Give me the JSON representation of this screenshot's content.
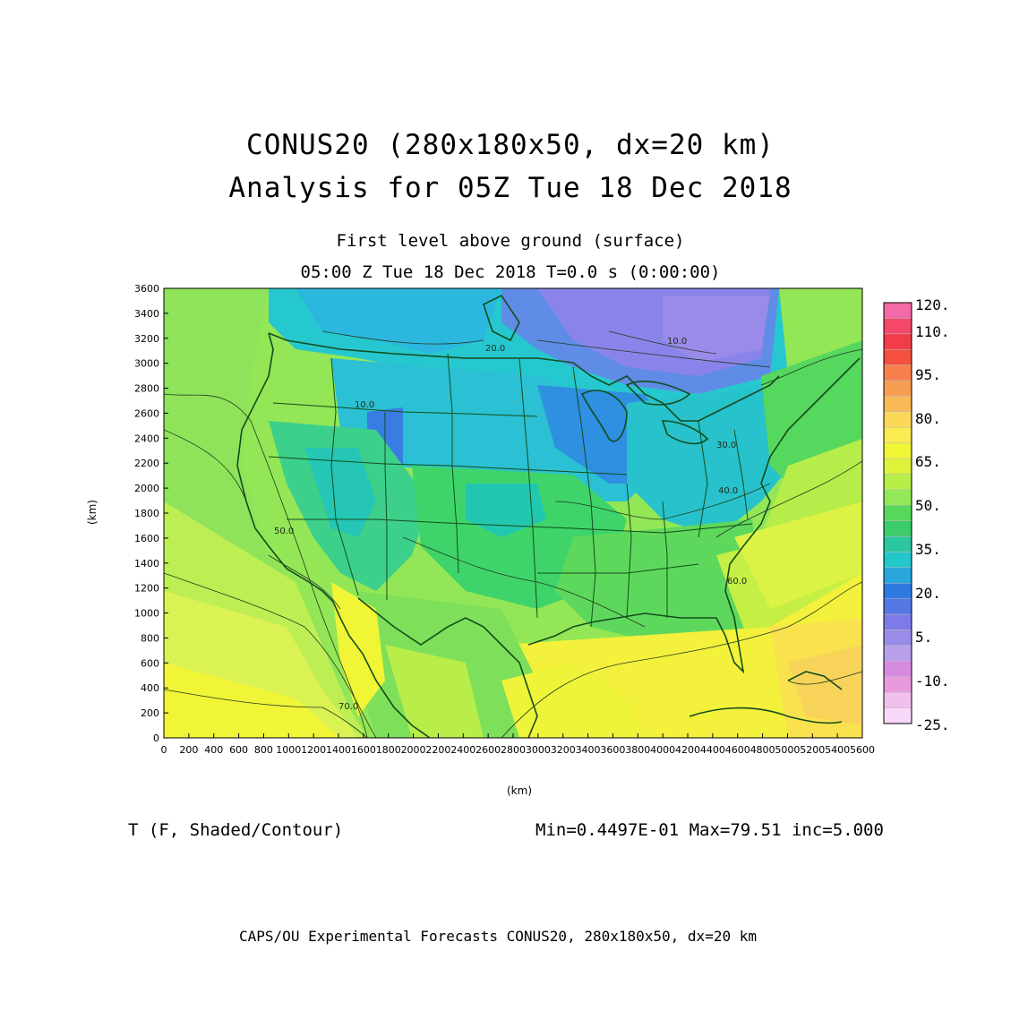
{
  "header": {
    "title_line1": "CONUS20 (280x180x50, dx=20 km)",
    "title_line2": "Analysis for 05Z Tue 18 Dec 2018",
    "level": "First level above ground (surface)",
    "time": "05:00 Z Tue 18 Dec 2018    T=0.0 s (0:00:00)"
  },
  "footer": {
    "field": "T (F, Shaded/Contour)",
    "stats": "Min=0.4497E-01 Max=79.51 inc=5.000",
    "credit": "CAPS/OU Experimental Forecasts  CONUS20, 280x180x50, dx=20 km"
  },
  "axes": {
    "x_label": "(km)",
    "y_label": "(km)",
    "x_ticks": [
      "0",
      "200",
      "400",
      "600",
      "800",
      "1000",
      "1200",
      "1400",
      "1600",
      "1800",
      "2000",
      "2200",
      "2400",
      "2600",
      "2800",
      "3000",
      "3200",
      "3400",
      "3600",
      "3800",
      "4000",
      "4200",
      "4400",
      "4600",
      "4800",
      "5000",
      "5200",
      "5400",
      "5600"
    ],
    "y_ticks": [
      "0",
      "200",
      "400",
      "600",
      "800",
      "1000",
      "1200",
      "1400",
      "1600",
      "1800",
      "2000",
      "2200",
      "2400",
      "2600",
      "2800",
      "3000",
      "3200",
      "3400",
      "3600"
    ],
    "x_range": [
      0,
      5600
    ],
    "y_range": [
      0,
      3600
    ]
  },
  "colorbar": {
    "labels": [
      "120.",
      "110.",
      "95.",
      "80.",
      "65.",
      "50.",
      "35.",
      "20.",
      "5.",
      "-10.",
      "-25."
    ],
    "colors": [
      "#f469a8",
      "#f4476a",
      "#f23c4a",
      "#f5503d",
      "#f7804d",
      "#f89e52",
      "#f8b956",
      "#fbd75a",
      "#fbec52",
      "#f0f736",
      "#ddf23b",
      "#b8ee48",
      "#92e856",
      "#56d85c",
      "#3ccc6a",
      "#2ac7a0",
      "#22c7c9",
      "#29a6dc",
      "#2f7ae0",
      "#5578e4",
      "#7d7be8",
      "#998be9",
      "#b9a0ec",
      "#d68be0",
      "#e99adf",
      "#f1c0ee",
      "#f9d9f9"
    ]
  },
  "contour_labels": [
    "10.0",
    "20.0",
    "30.0",
    "40.0",
    "50.0",
    "60.0",
    "70.0"
  ]
}
